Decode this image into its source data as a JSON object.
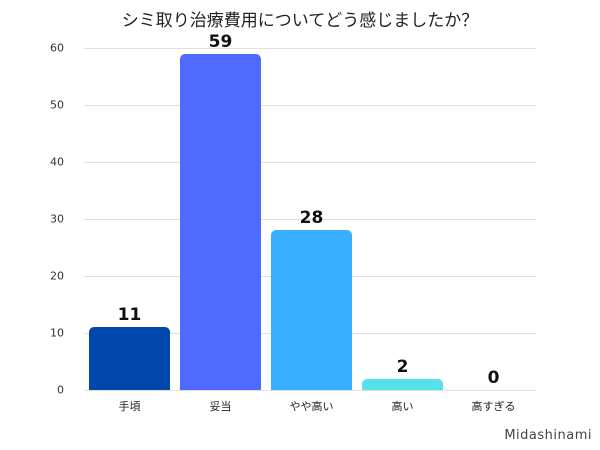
{
  "chart_data": {
    "type": "bar",
    "title": "シミ取り治療費用についてどう感じましたか？",
    "categories": [
      "手頃",
      "妥当",
      "やや高い",
      "高い",
      "高すぎる"
    ],
    "values": [
      11,
      59,
      28,
      2,
      0
    ],
    "colors": [
      "#0047ab",
      "#4f6bff",
      "#38b0ff",
      "#56e0e8",
      "#cccccc"
    ],
    "xlabel": "",
    "ylabel": "",
    "ylim": [
      0,
      60
    ],
    "yticks": [
      0,
      10,
      20,
      30,
      40,
      50,
      60
    ],
    "grid": true,
    "legend": "none"
  },
  "labels": {
    "title": "シミ取り治療費用についてどう感じましたか？",
    "watermark": "Midashinami",
    "yticks": [
      "0",
      "10",
      "20",
      "30",
      "40",
      "50",
      "60"
    ],
    "bars": [
      {
        "label": "手頃",
        "value": "11"
      },
      {
        "label": "妥当",
        "value": "59"
      },
      {
        "label": "やや高い",
        "value": "28"
      },
      {
        "label": "高い",
        "value": "2"
      },
      {
        "label": "高すぎる",
        "value": "0"
      }
    ]
  }
}
